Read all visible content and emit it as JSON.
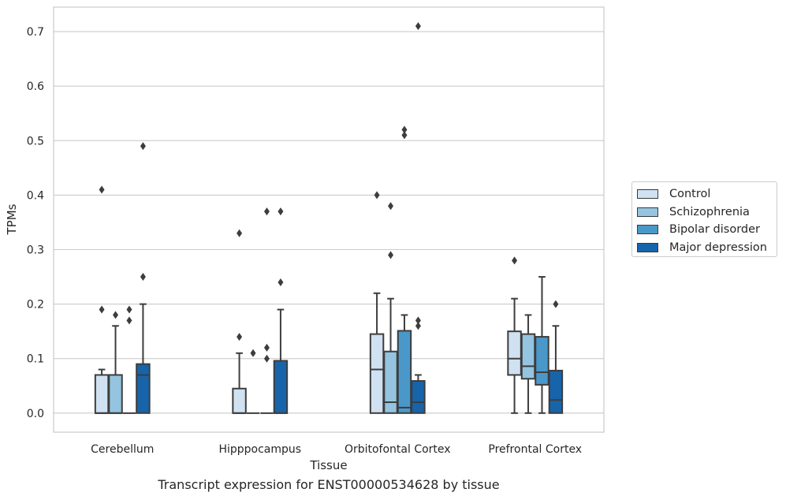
{
  "chart_data": {
    "type": "box",
    "xlabel": "Tissue",
    "ylabel": "TPMs",
    "caption": "Transcript expression for ENST00000534628 by tissue",
    "categories": [
      "Cerebellum",
      "Hipppocampus",
      "Orbitofontal Cortex",
      "Prefrontal Cortex"
    ],
    "ylim": [
      -0.035,
      0.745
    ],
    "yticks": [
      0.0,
      0.1,
      0.2,
      0.3,
      0.4,
      0.5,
      0.6,
      0.7
    ],
    "ytick_labels": [
      "0.0",
      "0.1",
      "0.2",
      "0.3",
      "0.4",
      "0.5",
      "0.6",
      "0.7"
    ],
    "grid": "horizontal",
    "legend_position": "right",
    "series": [
      {
        "name": "Control",
        "color": "#d0e1f2",
        "boxes": [
          {
            "q1": 0.0,
            "median": 0.0,
            "q3": 0.07,
            "whisker_low": 0.0,
            "whisker_high": 0.08,
            "outliers": [
              0.19,
              0.41
            ]
          },
          {
            "q1": 0.0,
            "median": 0.0,
            "q3": 0.045,
            "whisker_low": 0.0,
            "whisker_high": 0.11,
            "outliers": [
              0.14,
              0.33
            ]
          },
          {
            "q1": 0.0,
            "median": 0.08,
            "q3": 0.145,
            "whisker_low": 0.0,
            "whisker_high": 0.22,
            "outliers": [
              0.4
            ]
          },
          {
            "q1": 0.07,
            "median": 0.1,
            "q3": 0.15,
            "whisker_low": 0.0,
            "whisker_high": 0.21,
            "outliers": [
              0.28
            ]
          }
        ]
      },
      {
        "name": "Schizophrenia",
        "color": "#94c4df",
        "boxes": [
          {
            "q1": 0.0,
            "median": 0.0,
            "q3": 0.07,
            "whisker_low": 0.0,
            "whisker_high": 0.16,
            "outliers": [
              0.18
            ]
          },
          {
            "q1": 0.0,
            "median": 0.0,
            "q3": 0.0,
            "whisker_low": 0.0,
            "whisker_high": 0.0,
            "outliers": [
              0.11
            ]
          },
          {
            "q1": 0.0,
            "median": 0.02,
            "q3": 0.113,
            "whisker_low": 0.0,
            "whisker_high": 0.21,
            "outliers": [
              0.29,
              0.38
            ]
          },
          {
            "q1": 0.063,
            "median": 0.086,
            "q3": 0.145,
            "whisker_low": 0.0,
            "whisker_high": 0.18,
            "outliers": []
          }
        ]
      },
      {
        "name": "Bipolar disorder",
        "color": "#4a98c9",
        "boxes": [
          {
            "q1": 0.0,
            "median": 0.0,
            "q3": 0.0,
            "whisker_low": 0.0,
            "whisker_high": 0.0,
            "outliers": [
              0.17,
              0.19
            ]
          },
          {
            "q1": 0.0,
            "median": 0.0,
            "q3": 0.0,
            "whisker_low": 0.0,
            "whisker_high": 0.0,
            "outliers": [
              0.1,
              0.12,
              0.37
            ]
          },
          {
            "q1": 0.0,
            "median": 0.01,
            "q3": 0.151,
            "whisker_low": 0.0,
            "whisker_high": 0.18,
            "outliers": [
              0.51,
              0.52
            ]
          },
          {
            "q1": 0.052,
            "median": 0.075,
            "q3": 0.14,
            "whisker_low": 0.0,
            "whisker_high": 0.25,
            "outliers": []
          }
        ]
      },
      {
        "name": "Major depression",
        "color": "#1764ab",
        "boxes": [
          {
            "q1": 0.0,
            "median": 0.07,
            "q3": 0.09,
            "whisker_low": 0.0,
            "whisker_high": 0.2,
            "outliers": [
              0.25,
              0.49
            ]
          },
          {
            "q1": 0.0,
            "median": 0.0,
            "q3": 0.096,
            "whisker_low": 0.0,
            "whisker_high": 0.19,
            "outliers": [
              0.24,
              0.37
            ]
          },
          {
            "q1": 0.0,
            "median": 0.02,
            "q3": 0.059,
            "whisker_low": 0.0,
            "whisker_high": 0.07,
            "outliers": [
              0.16,
              0.17,
              0.71
            ]
          },
          {
            "q1": 0.0,
            "median": 0.024,
            "q3": 0.078,
            "whisker_low": 0.0,
            "whisker_high": 0.16,
            "outliers": [
              0.2
            ]
          }
        ]
      }
    ]
  }
}
